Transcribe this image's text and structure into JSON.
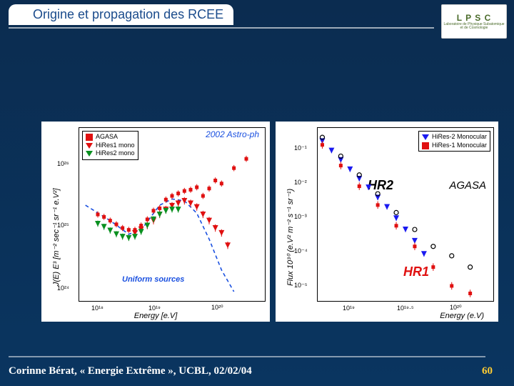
{
  "title": "Origine et propagation des RCEE",
  "logo": {
    "main": "L P S C",
    "sub": "Laboratoire de Physique Subatomique et de Cosmologie"
  },
  "footer": "Corinne Bérat, « Energie Extrême », UCBL, 02/02/04",
  "page_num": "60",
  "stray_text": "s",
  "colors": {
    "slide_bg_top": "#0b2c50",
    "slide_bg_bottom": "#0a3560",
    "title_color": "#1a4b8c",
    "panel_bg": "#ffffff",
    "agasa": "#e01010",
    "hires1": "#e01010",
    "hires2": "#1a1af0",
    "hires_green": "#0a9020",
    "uniform_curve": "#1a50e0",
    "grid": "#000000"
  },
  "left_chart": {
    "type": "scatter+curve",
    "title_inset": "2002 Astro-ph",
    "ylabel": "J(E) E³  [m⁻² sec⁻¹ sr⁻¹ e.V²]",
    "xlabel": "Energy [e.V]",
    "xticks": [
      "10¹⁸",
      "10¹⁹",
      "10²⁰"
    ],
    "xlim_log": [
      17.7,
      20.7
    ],
    "yticks": [
      "10²⁴",
      "10²⁵",
      "10²⁶"
    ],
    "ylim_log": [
      23.4,
      26.2
    ],
    "legend": [
      {
        "label": "AGASA",
        "color": "#e01010",
        "marker": "sq"
      },
      {
        "label": "HiRes1 mono",
        "color": "#e01010",
        "marker": "triDown"
      },
      {
        "label": "HiRes2 mono",
        "color": "#0a9020",
        "marker": "triDown"
      }
    ],
    "curve_label": "Uniform sources",
    "agasa_xy": [
      [
        18.0,
        24.8
      ],
      [
        18.1,
        24.76
      ],
      [
        18.2,
        24.7
      ],
      [
        18.3,
        24.64
      ],
      [
        18.4,
        24.58
      ],
      [
        18.5,
        24.55
      ],
      [
        18.6,
        24.55
      ],
      [
        18.7,
        24.62
      ],
      [
        18.8,
        24.72
      ],
      [
        18.9,
        24.86
      ],
      [
        19.0,
        24.9
      ],
      [
        19.1,
        25.04
      ],
      [
        19.2,
        25.1
      ],
      [
        19.3,
        25.14
      ],
      [
        19.4,
        25.18
      ],
      [
        19.5,
        25.2
      ],
      [
        19.6,
        25.24
      ],
      [
        19.7,
        25.1
      ],
      [
        19.8,
        25.22
      ],
      [
        19.9,
        25.35
      ],
      [
        20.0,
        25.3
      ],
      [
        20.2,
        25.55
      ],
      [
        20.4,
        25.7
      ]
    ],
    "agasa_err": 0.05,
    "hires1_xy": [
      [
        18.6,
        24.5
      ],
      [
        18.7,
        24.56
      ],
      [
        18.8,
        24.62
      ],
      [
        18.9,
        24.7
      ],
      [
        19.0,
        24.8
      ],
      [
        19.1,
        24.88
      ],
      [
        19.2,
        24.94
      ],
      [
        19.3,
        24.98
      ],
      [
        19.4,
        25.02
      ],
      [
        19.5,
        24.98
      ],
      [
        19.6,
        24.92
      ],
      [
        19.7,
        24.8
      ],
      [
        19.8,
        24.7
      ],
      [
        19.9,
        24.58
      ],
      [
        20.0,
        24.5
      ],
      [
        20.1,
        24.3
      ]
    ],
    "hires1_err": 0.06,
    "hires2_xy": [
      [
        18.0,
        24.65
      ],
      [
        18.1,
        24.6
      ],
      [
        18.2,
        24.54
      ],
      [
        18.3,
        24.48
      ],
      [
        18.4,
        24.44
      ],
      [
        18.5,
        24.42
      ],
      [
        18.6,
        24.44
      ],
      [
        18.7,
        24.52
      ],
      [
        18.8,
        24.62
      ],
      [
        18.9,
        24.72
      ],
      [
        19.0,
        24.8
      ],
      [
        19.1,
        24.86
      ],
      [
        19.2,
        24.88
      ],
      [
        19.3,
        24.88
      ]
    ],
    "hires2_err": 0.05,
    "uniform_curve_xy": [
      [
        17.8,
        24.95
      ],
      [
        18.2,
        24.7
      ],
      [
        18.5,
        24.48
      ],
      [
        18.7,
        24.55
      ],
      [
        19.0,
        24.95
      ],
      [
        19.2,
        25.05
      ],
      [
        19.4,
        25.02
      ],
      [
        19.6,
        24.82
      ],
      [
        19.8,
        24.4
      ],
      [
        20.0,
        23.9
      ],
      [
        20.2,
        23.55
      ]
    ]
  },
  "right_chart": {
    "type": "scatter",
    "ylabel": "Flux 10³⁰ (e.V² m⁻² s⁻¹ sr⁻¹)",
    "xlabel": "Energy (e.V)",
    "xticks": [
      "10¹⁹",
      "10¹⁹·⁵",
      "10²⁰"
    ],
    "xtick_vals": [
      19.0,
      19.5,
      20.0
    ],
    "xlim_log": [
      18.55,
      20.45
    ],
    "yticks": [
      "10⁻⁵",
      "10⁻⁴",
      "10⁻³",
      "10⁻²",
      "10⁻¹"
    ],
    "ylim_log": [
      -5.3,
      -0.7
    ],
    "legend": [
      {
        "label": "HiRes-2 Monocular",
        "color": "#1a1af0",
        "marker": "triDown"
      },
      {
        "label": "HiRes-1 Monocular",
        "color": "#e01010",
        "marker": "sq"
      }
    ],
    "ann_agasa": "AGASA",
    "ann_hr1": "HR1",
    "ann_hr2": "HR2",
    "hr2_xy": [
      [
        18.6,
        -1.05
      ],
      [
        18.7,
        -1.3
      ],
      [
        18.8,
        -1.55
      ],
      [
        18.9,
        -1.8
      ],
      [
        19.0,
        -2.05
      ],
      [
        19.1,
        -2.28
      ],
      [
        19.2,
        -2.55
      ],
      [
        19.3,
        -2.8
      ],
      [
        19.4,
        -3.1
      ],
      [
        19.5,
        -3.4
      ],
      [
        19.6,
        -3.7
      ],
      [
        19.7,
        -4.05
      ]
    ],
    "hr2_err": 0.07,
    "hr1_xy": [
      [
        18.6,
        -1.15
      ],
      [
        18.8,
        -1.7
      ],
      [
        19.0,
        -2.25
      ],
      [
        19.2,
        -2.75
      ],
      [
        19.4,
        -3.3
      ],
      [
        19.6,
        -3.85
      ],
      [
        19.8,
        -4.4
      ],
      [
        20.0,
        -4.9
      ],
      [
        20.2,
        -5.1
      ]
    ],
    "hr1_err": 0.1,
    "agasa_xy_r": [
      [
        18.6,
        -0.95
      ],
      [
        18.8,
        -1.45
      ],
      [
        19.0,
        -1.95
      ],
      [
        19.2,
        -2.45
      ],
      [
        19.4,
        -2.95
      ],
      [
        19.6,
        -3.4
      ],
      [
        19.8,
        -3.85
      ],
      [
        20.0,
        -4.1
      ],
      [
        20.2,
        -4.4
      ]
    ]
  }
}
